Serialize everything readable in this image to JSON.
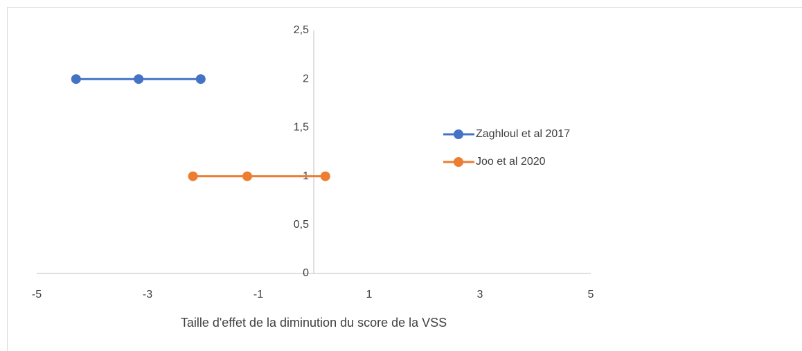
{
  "chart_data": {
    "type": "scatter",
    "xlabel": "Taille d'effet de la diminution du score de la VSS",
    "xlim": [
      -5,
      5
    ],
    "xticks": [
      -5,
      -3,
      -1,
      1,
      3,
      5
    ],
    "ylim": [
      0,
      2.5
    ],
    "yticks": [
      0,
      {
        "value": 0.5,
        "label": "0,5"
      },
      1,
      {
        "value": 1.5,
        "label": "1,5"
      },
      2,
      {
        "value": 2.5,
        "label": "2,5"
      }
    ],
    "grid": false,
    "legend": "right",
    "series": [
      {
        "name": "Zaghloul et al 2017",
        "color": "#4472c4",
        "x": [
          -4.29,
          -3.16,
          -2.04
        ],
        "values": [
          2,
          2,
          2
        ]
      },
      {
        "name": "Joo et al 2020",
        "color": "#ed7d31",
        "x": [
          -2.18,
          -1.2,
          0.21
        ],
        "values": [
          1,
          1,
          1
        ]
      }
    ]
  }
}
